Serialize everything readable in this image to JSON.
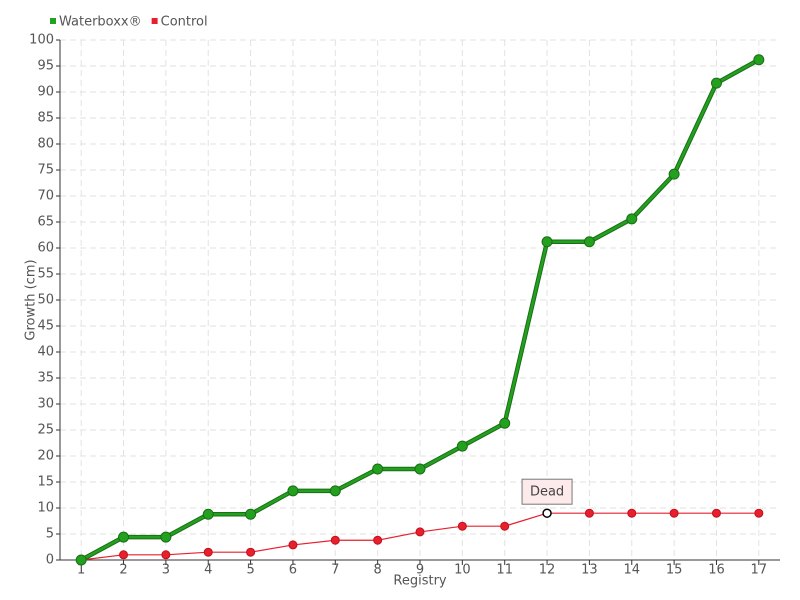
{
  "chart_data": {
    "type": "line",
    "x_label": "Registry",
    "y_label": "Growth (cm)",
    "x": [
      1,
      2,
      3,
      4,
      5,
      6,
      7,
      8,
      9,
      10,
      11,
      12,
      13,
      14,
      15,
      16,
      17
    ],
    "series": [
      {
        "name": "Waterboxx®",
        "color": "#22a01e",
        "values": [
          0,
          4.4,
          4.4,
          8.8,
          8.8,
          13.3,
          13.3,
          17.5,
          17.5,
          21.9,
          26.3,
          61.2,
          61.2,
          65.6,
          74.2,
          91.7,
          96.2
        ]
      },
      {
        "name": "Control",
        "color": "#e8202e",
        "values": [
          0,
          1,
          1,
          1.5,
          1.5,
          2.9,
          3.8,
          3.8,
          5.4,
          6.5,
          6.5,
          9,
          9,
          9,
          9,
          9,
          9
        ]
      }
    ],
    "annotations": [
      {
        "text": "Dead",
        "x": 12
      }
    ],
    "xlim": [
      0.5,
      17.5
    ],
    "xticks": [
      1,
      2,
      3,
      4,
      5,
      6,
      7,
      8,
      9,
      10,
      11,
      12,
      13,
      14,
      15,
      16,
      17
    ],
    "ylim": [
      0,
      100
    ],
    "yticks": [
      0,
      5,
      10,
      15,
      20,
      25,
      30,
      35,
      40,
      45,
      50,
      55,
      60,
      65,
      70,
      75,
      80,
      85,
      90,
      95,
      100
    ],
    "grid": true,
    "legend": "top-left"
  }
}
